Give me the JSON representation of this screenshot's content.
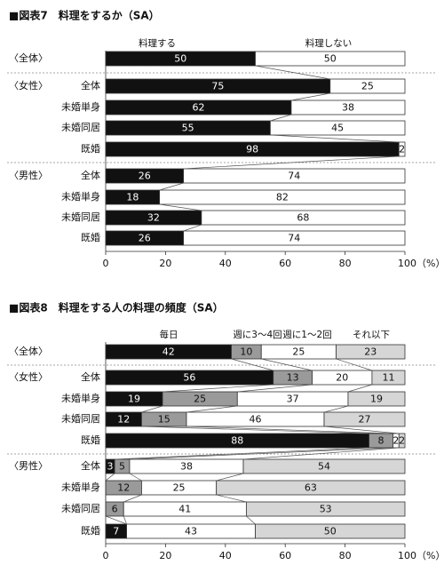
{
  "chart_data": [
    {
      "type": "bar",
      "stacked": true,
      "orientation": "horizontal",
      "title": "■図表7　料理をするか（SA）",
      "series": [
        {
          "name": "料理する",
          "color": "#111111"
        },
        {
          "name": "料理しない",
          "color": "#ffffff"
        }
      ],
      "groups": [
        {
          "label": "〈全体〉",
          "rows": [
            {
              "label": "",
              "values": [
                50,
                50
              ]
            }
          ]
        },
        {
          "label": "〈女性〉",
          "rows": [
            {
              "label": "全体",
              "values": [
                75,
                25
              ]
            },
            {
              "label": "未婚単身",
              "values": [
                62,
                38
              ]
            },
            {
              "label": "未婚同居",
              "values": [
                55,
                45
              ]
            },
            {
              "label": "既婚",
              "values": [
                98,
                2
              ]
            }
          ]
        },
        {
          "label": "〈男性〉",
          "rows": [
            {
              "label": "全体",
              "values": [
                26,
                74
              ]
            },
            {
              "label": "未婚単身",
              "values": [
                18,
                82
              ]
            },
            {
              "label": "未婚同居",
              "values": [
                32,
                68
              ]
            },
            {
              "label": "既婚",
              "values": [
                26,
                74
              ]
            }
          ]
        }
      ],
      "xlim": [
        0,
        100
      ],
      "xticks": [
        "0",
        "20",
        "40",
        "60",
        "80",
        "100（%）"
      ]
    },
    {
      "type": "bar",
      "stacked": true,
      "orientation": "horizontal",
      "title": "■図表8　料理をする人の料理の頻度（SA）",
      "series": [
        {
          "name": "毎日",
          "color": "#111111"
        },
        {
          "name": "週に3～4回",
          "color": "#9a9a9a"
        },
        {
          "name": "週に1～2回",
          "color": "#ffffff"
        },
        {
          "name": "それ以下",
          "color": "#d6d6d6"
        }
      ],
      "groups": [
        {
          "label": "〈全体〉",
          "rows": [
            {
              "label": "",
              "values": [
                42,
                10,
                25,
                23
              ]
            }
          ]
        },
        {
          "label": "〈女性〉",
          "rows": [
            {
              "label": "全体",
              "values": [
                56,
                13,
                20,
                11
              ]
            },
            {
              "label": "未婚単身",
              "values": [
                19,
                25,
                37,
                19
              ]
            },
            {
              "label": "未婚同居",
              "values": [
                12,
                15,
                46,
                27
              ]
            },
            {
              "label": "既婚",
              "values": [
                88,
                8,
                2,
                2
              ]
            }
          ]
        },
        {
          "label": "〈男性〉",
          "rows": [
            {
              "label": "全体",
              "values": [
                3,
                5,
                38,
                54
              ]
            },
            {
              "label": "未婚単身",
              "values": [
                0,
                12,
                25,
                63
              ]
            },
            {
              "label": "未婚同居",
              "values": [
                0,
                6,
                41,
                53
              ]
            },
            {
              "label": "既婚",
              "values": [
                7,
                0,
                43,
                50
              ]
            }
          ]
        }
      ],
      "xlim": [
        0,
        100
      ],
      "xticks": [
        "0",
        "20",
        "40",
        "60",
        "80",
        "100（%）"
      ]
    }
  ]
}
